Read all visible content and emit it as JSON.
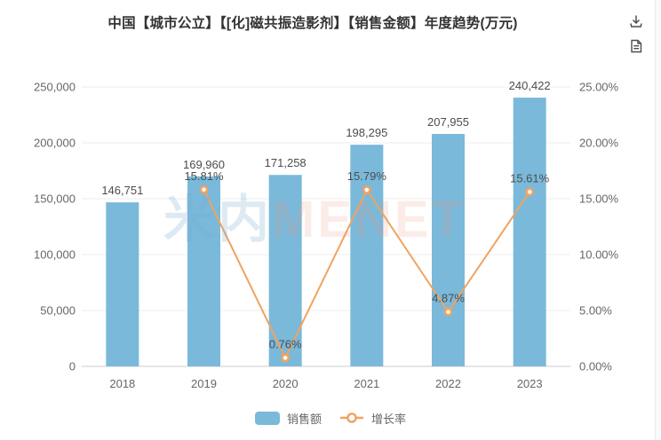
{
  "title": "中国【城市公立】【[化]磁共振造影剂】【销售金额】年度趋势(万元)",
  "toolbox": {
    "save_image_icon": "download-icon",
    "data_view_icon": "document-icon"
  },
  "watermark": {
    "cn": "米内",
    "en": "MENET"
  },
  "legend": {
    "items": [
      {
        "label": "销售额",
        "type": "bar"
      },
      {
        "label": "增长率",
        "type": "line"
      }
    ]
  },
  "colors": {
    "bar": "#7ab9da",
    "line": "#f0a35f",
    "marker_fill": "#ffffff",
    "axis_label": "#666666",
    "value_label": "#4d4d4d",
    "grid": "#ececec",
    "axis_line": "#cccccc",
    "title": "#333333",
    "icon": "#4d4d4d",
    "watermark_cn": "rgba(120,170,212,0.25)",
    "watermark_en": "rgba(236,148,128,0.18)"
  },
  "chart_data": {
    "type": "bar+line",
    "title": "中国【城市公立】【[化]磁共振造影剂】【销售金额】年度趋势(万元)",
    "categories": [
      "2018",
      "2019",
      "2020",
      "2021",
      "2022",
      "2023"
    ],
    "series": [
      {
        "name": "销售额",
        "type": "bar",
        "axis": "left",
        "values": [
          146751,
          169960,
          171258,
          198295,
          207955,
          240422
        ],
        "labels": [
          "146,751",
          "169,960",
          "171,258",
          "198,295",
          "207,955",
          "240,422"
        ]
      },
      {
        "name": "增长率",
        "type": "line",
        "axis": "right",
        "values": [
          null,
          15.81,
          0.76,
          15.79,
          4.87,
          15.61
        ],
        "labels": [
          null,
          "15.81%",
          "0.76%",
          "15.79%",
          "4.87%",
          "15.61%"
        ]
      }
    ],
    "left_axis": {
      "min": 0,
      "max": 250000,
      "ticks": [
        "250,000",
        "200,000",
        "150,000",
        "100,000",
        "50,000",
        "0"
      ]
    },
    "right_axis": {
      "min": 0,
      "max": 25,
      "ticks": [
        "25.00%",
        "20.00%",
        "15.00%",
        "10.00%",
        "5.00%",
        "0.00%"
      ]
    },
    "grid": true,
    "legend_position": "bottom"
  }
}
